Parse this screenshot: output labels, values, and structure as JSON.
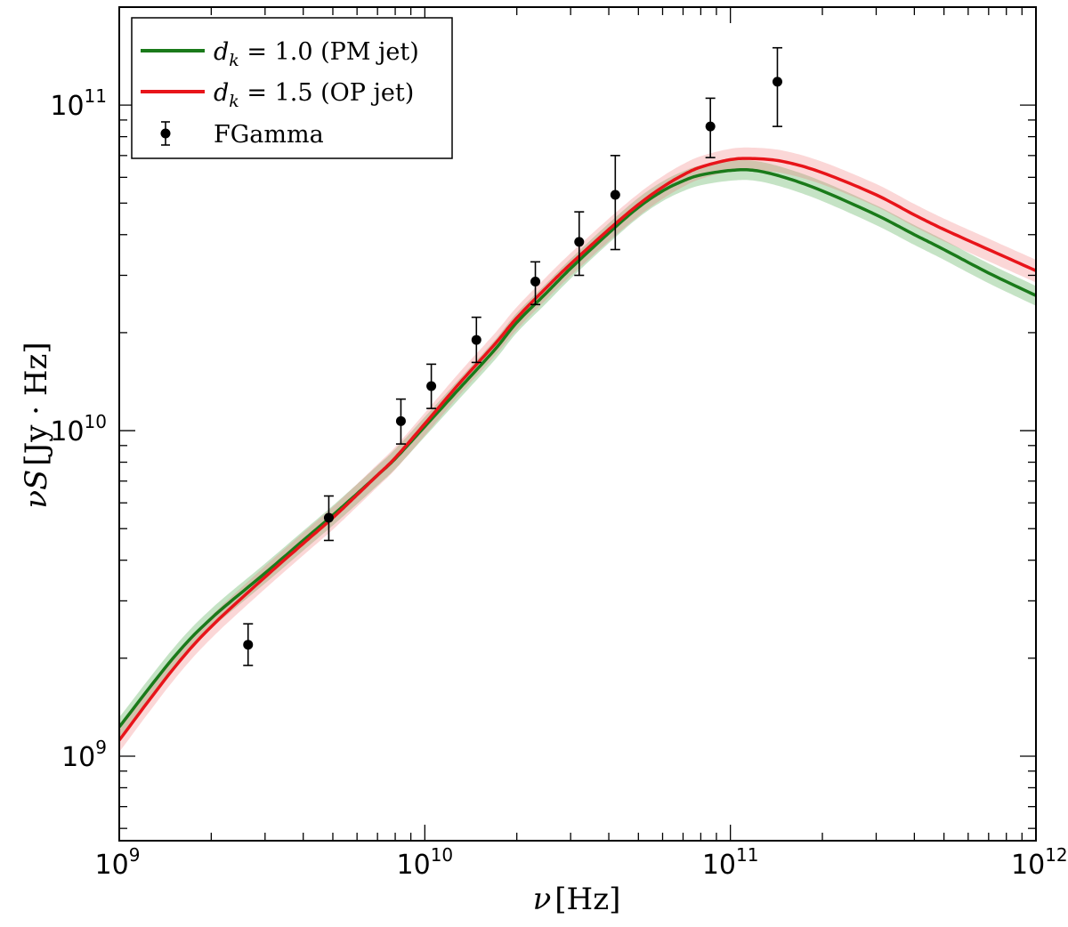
{
  "chart_data": {
    "type": "line",
    "xscale": "log",
    "yscale": "log",
    "xlim": [
      1000000000.0,
      1000000000000.0
    ],
    "ylim": [
      550000000.0,
      200000000000.0
    ],
    "xlabel": {
      "main": "ν",
      "unit": "[Hz]"
    },
    "ylabel": {
      "main": "νS",
      "unit": "[Jy · Hz]"
    },
    "x_ticks": [
      {
        "base": "10",
        "exp": "9",
        "value": 1000000000.0
      },
      {
        "base": "10",
        "exp": "10",
        "value": 10000000000.0
      },
      {
        "base": "10",
        "exp": "11",
        "value": 100000000000.0
      },
      {
        "base": "10",
        "exp": "12",
        "value": 1000000000000.0
      }
    ],
    "y_ticks": [
      {
        "base": "10",
        "exp": "9",
        "value": 1000000000.0
      },
      {
        "base": "10",
        "exp": "10",
        "value": 10000000000.0
      },
      {
        "base": "10",
        "exp": "11",
        "value": 100000000000.0
      }
    ],
    "series": [
      {
        "name": "d_k = 1.0 (PM jet)",
        "legend": {
          "symbol": "d",
          "sub": "k",
          "rest": " = 1.0 (PM jet)"
        },
        "color": "#1a7a1a",
        "band_color": "#2e9a2e",
        "band_fraction": 0.07,
        "x": [
          1000000000.0,
          1500000000.0,
          2000000000.0,
          3000000000.0,
          4000000000.0,
          5000000000.0,
          6000000000.0,
          7000000000.0,
          8000000000.0,
          10000000000.0,
          13000000000.0,
          17000000000.0,
          20000000000.0,
          25000000000.0,
          30000000000.0,
          40000000000.0,
          50000000000.0,
          60000000000.0,
          70000000000.0,
          80000000000.0,
          100000000000.0,
          120000000000.0,
          150000000000.0,
          200000000000.0,
          300000000000.0,
          400000000000.0,
          500000000000.0,
          700000000000.0,
          1000000000000.0
        ],
        "y": [
          1230000000.0,
          2000000000.0,
          2650000000.0,
          3650000000.0,
          4600000000.0,
          5500000000.0,
          6400000000.0,
          7300000000.0,
          8200000000.0,
          10300000000.0,
          13500000000.0,
          17800000000.0,
          21500000000.0,
          26500000000.0,
          31500000000.0,
          40500000000.0,
          48500000000.0,
          54500000000.0,
          58500000000.0,
          61000000000.0,
          63000000000.0,
          63000000000.0,
          60000000000.0,
          54500000000.0,
          46000000000.0,
          40000000000.0,
          36000000000.0,
          30500000000.0,
          26000000000.0
        ]
      },
      {
        "name": "d_k = 1.5 (OP jet)",
        "legend": {
          "symbol": "d",
          "sub": "k",
          "rest": " = 1.5 (OP jet)"
        },
        "color": "#e8141a",
        "band_color": "#f07070",
        "band_fraction": 0.08,
        "x": [
          1000000000.0,
          1500000000.0,
          2000000000.0,
          3000000000.0,
          4000000000.0,
          5000000000.0,
          6000000000.0,
          7000000000.0,
          8000000000.0,
          10000000000.0,
          13000000000.0,
          17000000000.0,
          20000000000.0,
          25000000000.0,
          30000000000.0,
          40000000000.0,
          50000000000.0,
          60000000000.0,
          70000000000.0,
          80000000000.0,
          100000000000.0,
          120000000000.0,
          150000000000.0,
          200000000000.0,
          300000000000.0,
          400000000000.0,
          500000000000.0,
          700000000000.0,
          1000000000000.0
        ],
        "y": [
          1120000000.0,
          1850000000.0,
          2500000000.0,
          3550000000.0,
          4500000000.0,
          5400000000.0,
          6350000000.0,
          7300000000.0,
          8250000000.0,
          10500000000.0,
          14000000000.0,
          18500000000.0,
          22200000000.0,
          27500000000.0,
          32500000000.0,
          41500000000.0,
          49500000000.0,
          56000000000.0,
          61000000000.0,
          64500000000.0,
          68000000000.0,
          68500000000.0,
          67000000000.0,
          62000000000.0,
          53000000000.0,
          46000000000.0,
          41500000000.0,
          36000000000.0,
          31000000000.0
        ]
      }
    ],
    "observations": {
      "name": "FGamma",
      "color": "#000000",
      "points": [
        {
          "x": 2640000000.0,
          "y": 2200000000.0,
          "y_lo": 1900000000.0,
          "y_hi": 2550000000.0
        },
        {
          "x": 4850000000.0,
          "y": 5400000000.0,
          "y_lo": 4600000000.0,
          "y_hi": 6300000000.0
        },
        {
          "x": 8350000000.0,
          "y": 10700000000.0,
          "y_lo": 9100000000.0,
          "y_hi": 12500000000.0
        },
        {
          "x": 10500000000.0,
          "y": 13700000000.0,
          "y_lo": 11700000000.0,
          "y_hi": 16000000000.0
        },
        {
          "x": 14750000000.0,
          "y": 19000000000.0,
          "y_lo": 16200000000.0,
          "y_hi": 22300000000.0
        },
        {
          "x": 23000000000.0,
          "y": 28700000000.0,
          "y_lo": 24400000000.0,
          "y_hi": 33000000000.0
        },
        {
          "x": 32000000000.0,
          "y": 38000000000.0,
          "y_lo": 30000000000.0,
          "y_hi": 47000000000.0
        },
        {
          "x": 42000000000.0,
          "y": 53000000000.0,
          "y_lo": 36000000000.0,
          "y_hi": 70000000000.0
        },
        {
          "x": 86000000000.0,
          "y": 86000000000.0,
          "y_lo": 69000000000.0,
          "y_hi": 105000000000.0
        },
        {
          "x": 142500000000.0,
          "y": 118000000000.0,
          "y_lo": 86000000000.0,
          "y_hi": 150000000000.0
        }
      ]
    },
    "legend_position": "top-left"
  }
}
